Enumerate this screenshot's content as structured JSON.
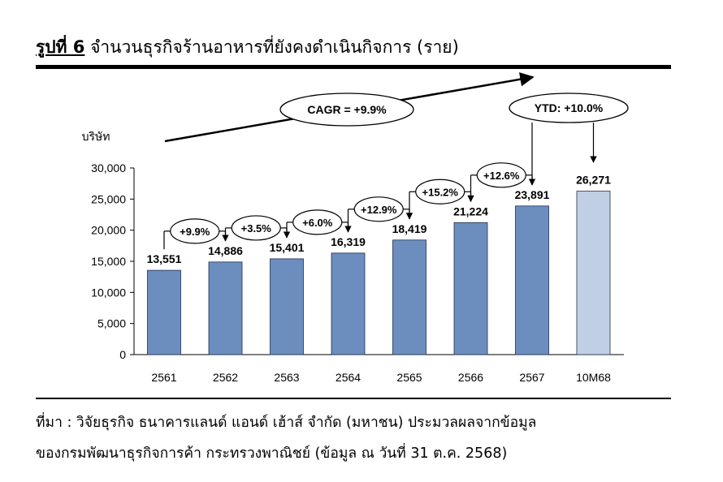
{
  "figure": {
    "label": "รูปที่ 6",
    "title": "จำนวนธุรกิจร้านอาหารที่ยังคงดำเนินกิจการ (ราย)"
  },
  "chart_data": {
    "type": "bar",
    "ylabel": "บริษัท",
    "ylim": [
      0,
      30000
    ],
    "yticks": [
      0,
      5000,
      10000,
      15000,
      20000,
      25000,
      30000
    ],
    "ytick_labels": [
      "0",
      "5,000",
      "10,000",
      "15,000",
      "20,000",
      "25,000",
      "30,000"
    ],
    "categories": [
      "2561",
      "2562",
      "2563",
      "2564",
      "2565",
      "2566",
      "2567",
      "10M68"
    ],
    "values": [
      13551,
      14886,
      15401,
      16319,
      18419,
      21224,
      23891,
      26271
    ],
    "value_labels": [
      "13,551",
      "14,886",
      "15,401",
      "16,319",
      "18,419",
      "21,224",
      "23,891",
      "26,271"
    ],
    "growth_labels": [
      "+9.9%",
      "+3.5%",
      "+6.0%",
      "+12.9%",
      "+15.2%",
      "+12.6%"
    ],
    "cagr_label": "CAGR = +9.9%",
    "ytd_label": "YTD: +10.0%",
    "colors": {
      "bar": "#6b8ebf",
      "bar_highlight": "#c1cfe5",
      "bar_edge": "#1f2f4a"
    }
  },
  "source": {
    "line1": "ที่มา : วิจัยธุรกิจ ธนาคารแลนด์ แอนด์ เฮ้าส์ จำกัด (มหาชน) ประมวลผลจากข้อมูล",
    "line2": "ของกรมพัฒนาธุรกิจการค้า กระทรวงพาณิชย์ (ข้อมูล ณ วันที่ 31 ต.ค. 2568)"
  }
}
